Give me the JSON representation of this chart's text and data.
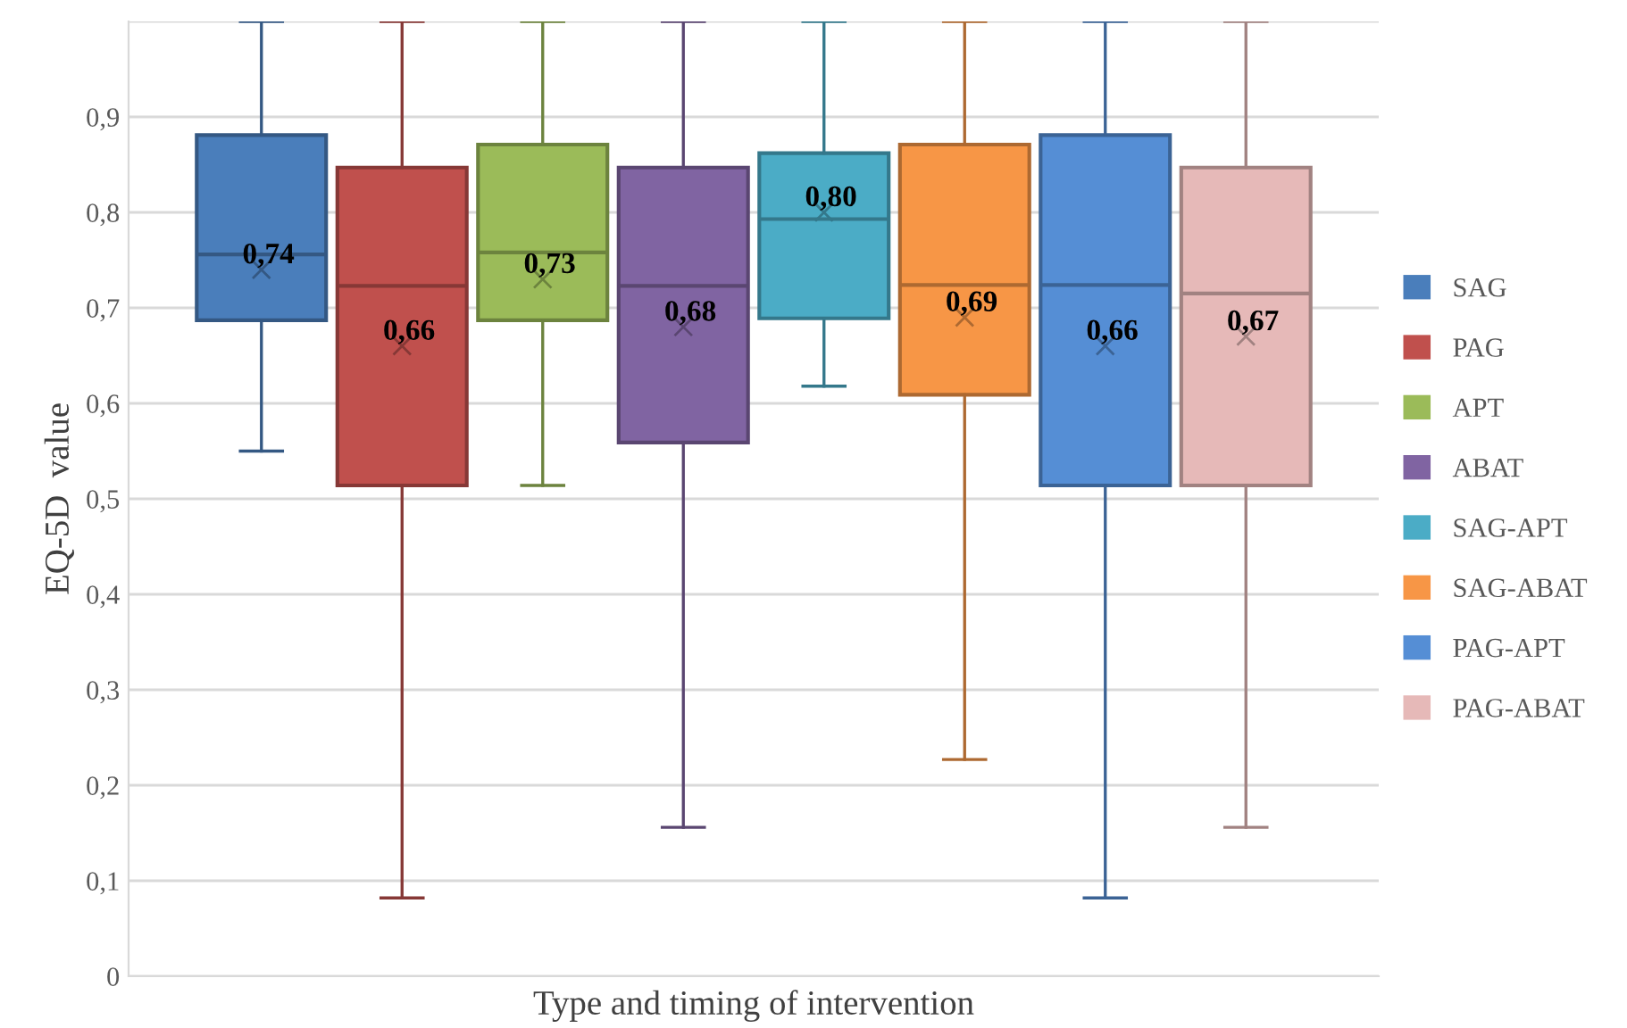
{
  "chart_data": {
    "type": "box",
    "xlabel": "Type and timing of intervention",
    "ylabel": "EQ-5D  value",
    "categories": [
      null
    ],
    "ylim": [
      0,
      1
    ],
    "yticks": [
      {
        "value": 0,
        "label": "0"
      },
      {
        "value": 0.1,
        "label": "0,1"
      },
      {
        "value": 0.2,
        "label": "0,2"
      },
      {
        "value": 0.3,
        "label": "0,3"
      },
      {
        "value": 0.4,
        "label": "0,4"
      },
      {
        "value": 0.5,
        "label": "0,5"
      },
      {
        "value": 0.6,
        "label": "0,6"
      },
      {
        "value": 0.7,
        "label": "0,7"
      },
      {
        "value": 0.8,
        "label": "0,8"
      },
      {
        "value": 0.9,
        "label": "0,9"
      },
      {
        "value": 1,
        "label": null
      }
    ],
    "grid": "y",
    "legend": "right",
    "marker": "cross",
    "series": [
      {
        "name": "SAG",
        "color": "#4a7ebb",
        "boxes": [
          {
            "low": 0.55,
            "q1": 0.687,
            "median": 0.756,
            "q3": 0.881,
            "high": 1.0,
            "mean": 0.74
          }
        ],
        "value_labels": [
          "0,74"
        ]
      },
      {
        "name": "PAG",
        "color": "#c0504d",
        "boxes": [
          {
            "low": 0.082,
            "q1": 0.514,
            "median": 0.723,
            "q3": 0.847,
            "high": 1.0,
            "mean": 0.66
          }
        ],
        "value_labels": [
          "0,66"
        ]
      },
      {
        "name": "APT",
        "color": "#9bbb59",
        "boxes": [
          {
            "low": 0.514,
            "q1": 0.687,
            "median": 0.758,
            "q3": 0.871,
            "high": 1.0,
            "mean": 0.73
          }
        ],
        "value_labels": [
          "0,73"
        ]
      },
      {
        "name": "ABAT",
        "color": "#8064a2",
        "boxes": [
          {
            "low": 0.156,
            "q1": 0.559,
            "median": 0.723,
            "q3": 0.847,
            "high": 1.0,
            "mean": 0.68
          }
        ],
        "value_labels": [
          "0,68"
        ]
      },
      {
        "name": "SAG-APT",
        "color": "#4bacc6",
        "boxes": [
          {
            "low": 0.618,
            "q1": 0.689,
            "median": 0.793,
            "q3": 0.862,
            "high": 1.0,
            "mean": 0.8
          }
        ],
        "value_labels": [
          "0,80"
        ]
      },
      {
        "name": "SAG-ABAT",
        "color": "#f79646",
        "boxes": [
          {
            "low": 0.227,
            "q1": 0.609,
            "median": 0.724,
            "q3": 0.871,
            "high": 1.0,
            "mean": 0.69
          }
        ],
        "value_labels": [
          "0,69"
        ]
      },
      {
        "name": "PAG-APT",
        "color": "#558ed5",
        "boxes": [
          {
            "low": 0.082,
            "q1": 0.514,
            "median": 0.724,
            "q3": 0.881,
            "high": 1.0,
            "mean": 0.66
          }
        ],
        "value_labels": [
          "0,66"
        ]
      },
      {
        "name": "PAG-ABAT",
        "color": "#e6b9b8",
        "boxes": [
          {
            "low": 0.156,
            "q1": 0.514,
            "median": 0.715,
            "q3": 0.847,
            "high": 1.0,
            "mean": 0.67
          }
        ],
        "value_labels": [
          "0,67"
        ]
      }
    ]
  }
}
